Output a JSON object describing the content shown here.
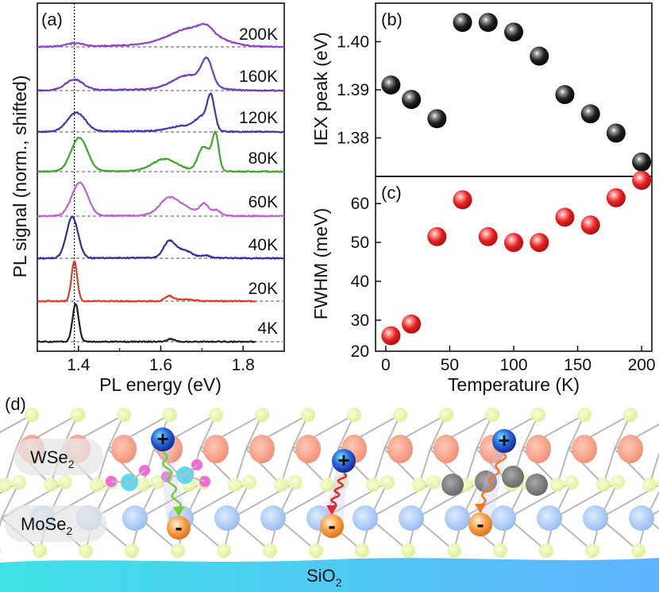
{
  "chart_data": [
    {
      "panel": "a",
      "type": "line",
      "panel_label": "(a)",
      "xlabel": "PL energy (eV)",
      "ylabel": "PL signal (norm., shifted)",
      "xlim": [
        1.3,
        1.9
      ],
      "xticks": [
        "1.4",
        "1.6",
        "1.8"
      ],
      "xtick_values": [
        1.4,
        1.6,
        1.8
      ],
      "reference_line_x": 1.39,
      "series": [
        {
          "name": "200K",
          "color": "#8e44c9",
          "peaks": [
            [
              1.39,
              0.1,
              0.022
            ],
            [
              1.68,
              0.55,
              0.055
            ],
            [
              1.71,
              0.2,
              0.015
            ]
          ],
          "background": 0.06
        },
        {
          "name": "160K",
          "color": "#6b3fbf",
          "peaks": [
            [
              1.39,
              0.28,
              0.022
            ],
            [
              1.67,
              0.38,
              0.04
            ],
            [
              1.712,
              0.62,
              0.013
            ]
          ],
          "background": 0.03
        },
        {
          "name": "120K",
          "color": "#3a3aa8",
          "peaks": [
            [
              1.395,
              0.5,
              0.022
            ],
            [
              1.66,
              0.15,
              0.035
            ],
            [
              1.7,
              0.3,
              0.015
            ],
            [
              1.722,
              0.85,
              0.009
            ]
          ],
          "background": 0.02
        },
        {
          "name": "80K",
          "color": "#3fa62c",
          "peaks": [
            [
              1.402,
              0.85,
              0.02
            ],
            [
              1.61,
              0.3,
              0.03
            ],
            [
              1.705,
              0.62,
              0.014
            ],
            [
              1.733,
              0.9,
              0.008
            ]
          ],
          "background": 0.02
        },
        {
          "name": "60K",
          "color": "#c060d8",
          "peaks": [
            [
              1.403,
              0.88,
              0.019
            ],
            [
              1.618,
              0.38,
              0.022
            ],
            [
              1.655,
              0.2,
              0.03
            ],
            [
              1.706,
              0.28,
              0.01
            ],
            [
              1.735,
              0.15,
              0.01
            ]
          ],
          "background": 0.02
        },
        {
          "name": "40K",
          "color": "#2f2fa0",
          "peaks": [
            [
              1.385,
              1.0,
              0.014
            ],
            [
              1.62,
              0.38,
              0.014
            ],
            [
              1.655,
              0.18,
              0.02
            ],
            [
              1.71,
              0.06,
              0.01
            ]
          ],
          "background": 0.01
        },
        {
          "name": "20K",
          "color": "#e03a2a",
          "peaks": [
            [
              1.39,
              1.0,
              0.007
            ],
            [
              1.62,
              0.13,
              0.01
            ],
            [
              1.66,
              0.05,
              0.02
            ]
          ],
          "background": 0.0
        },
        {
          "name": "4K",
          "color": "#222222",
          "peaks": [
            [
              1.393,
              1.0,
              0.0075
            ],
            [
              1.625,
              0.07,
              0.01
            ]
          ],
          "background": 0.0
        }
      ]
    },
    {
      "panel": "b",
      "type": "scatter",
      "panel_label": "(b)",
      "ylabel": "IEX peak (eV)",
      "ylim": [
        1.372,
        1.408
      ],
      "yticks": [
        "1.38",
        "1.39",
        "1.40"
      ],
      "ytick_values": [
        1.38,
        1.39,
        1.4
      ],
      "marker_color": "#111111",
      "x": [
        4,
        20,
        40,
        60,
        80,
        100,
        120,
        140,
        160,
        180,
        200
      ],
      "y": [
        1.391,
        1.388,
        1.384,
        1.404,
        1.404,
        1.402,
        1.397,
        1.389,
        1.385,
        1.381,
        1.375
      ]
    },
    {
      "panel": "c",
      "type": "scatter",
      "panel_label": "(c)",
      "xlabel": "Temperature (K)",
      "ylabel": "FWHM (meV)",
      "xlim": [
        -8,
        208
      ],
      "ylim": [
        22,
        67
      ],
      "xticks": [
        "0",
        "50",
        "100",
        "150",
        "200"
      ],
      "xtick_values": [
        0,
        50,
        100,
        150,
        200
      ],
      "yticks": [
        "20",
        "30",
        "40",
        "50",
        "60"
      ],
      "ytick_values": [
        20,
        30,
        40,
        50,
        60
      ],
      "marker_color": "#e32626",
      "x": [
        4,
        20,
        40,
        60,
        80,
        100,
        120,
        140,
        160,
        180,
        200
      ],
      "y": [
        26,
        29,
        51.5,
        61,
        51.5,
        50,
        50,
        56.5,
        54.5,
        61.5,
        66
      ]
    }
  ],
  "diagram": {
    "panel_label": "(d)",
    "top_layer_label": "WSe",
    "top_layer_sub": "2",
    "bottom_layer_label": "MoSe",
    "bottom_layer_sub": "2",
    "substrate_label": "SiO",
    "substrate_sub": "2",
    "hole_symbol": "+",
    "electron_symbol": "-",
    "arrow_colors": [
      "#6fd12a",
      "#e12b2b",
      "#f07a1c"
    ]
  }
}
